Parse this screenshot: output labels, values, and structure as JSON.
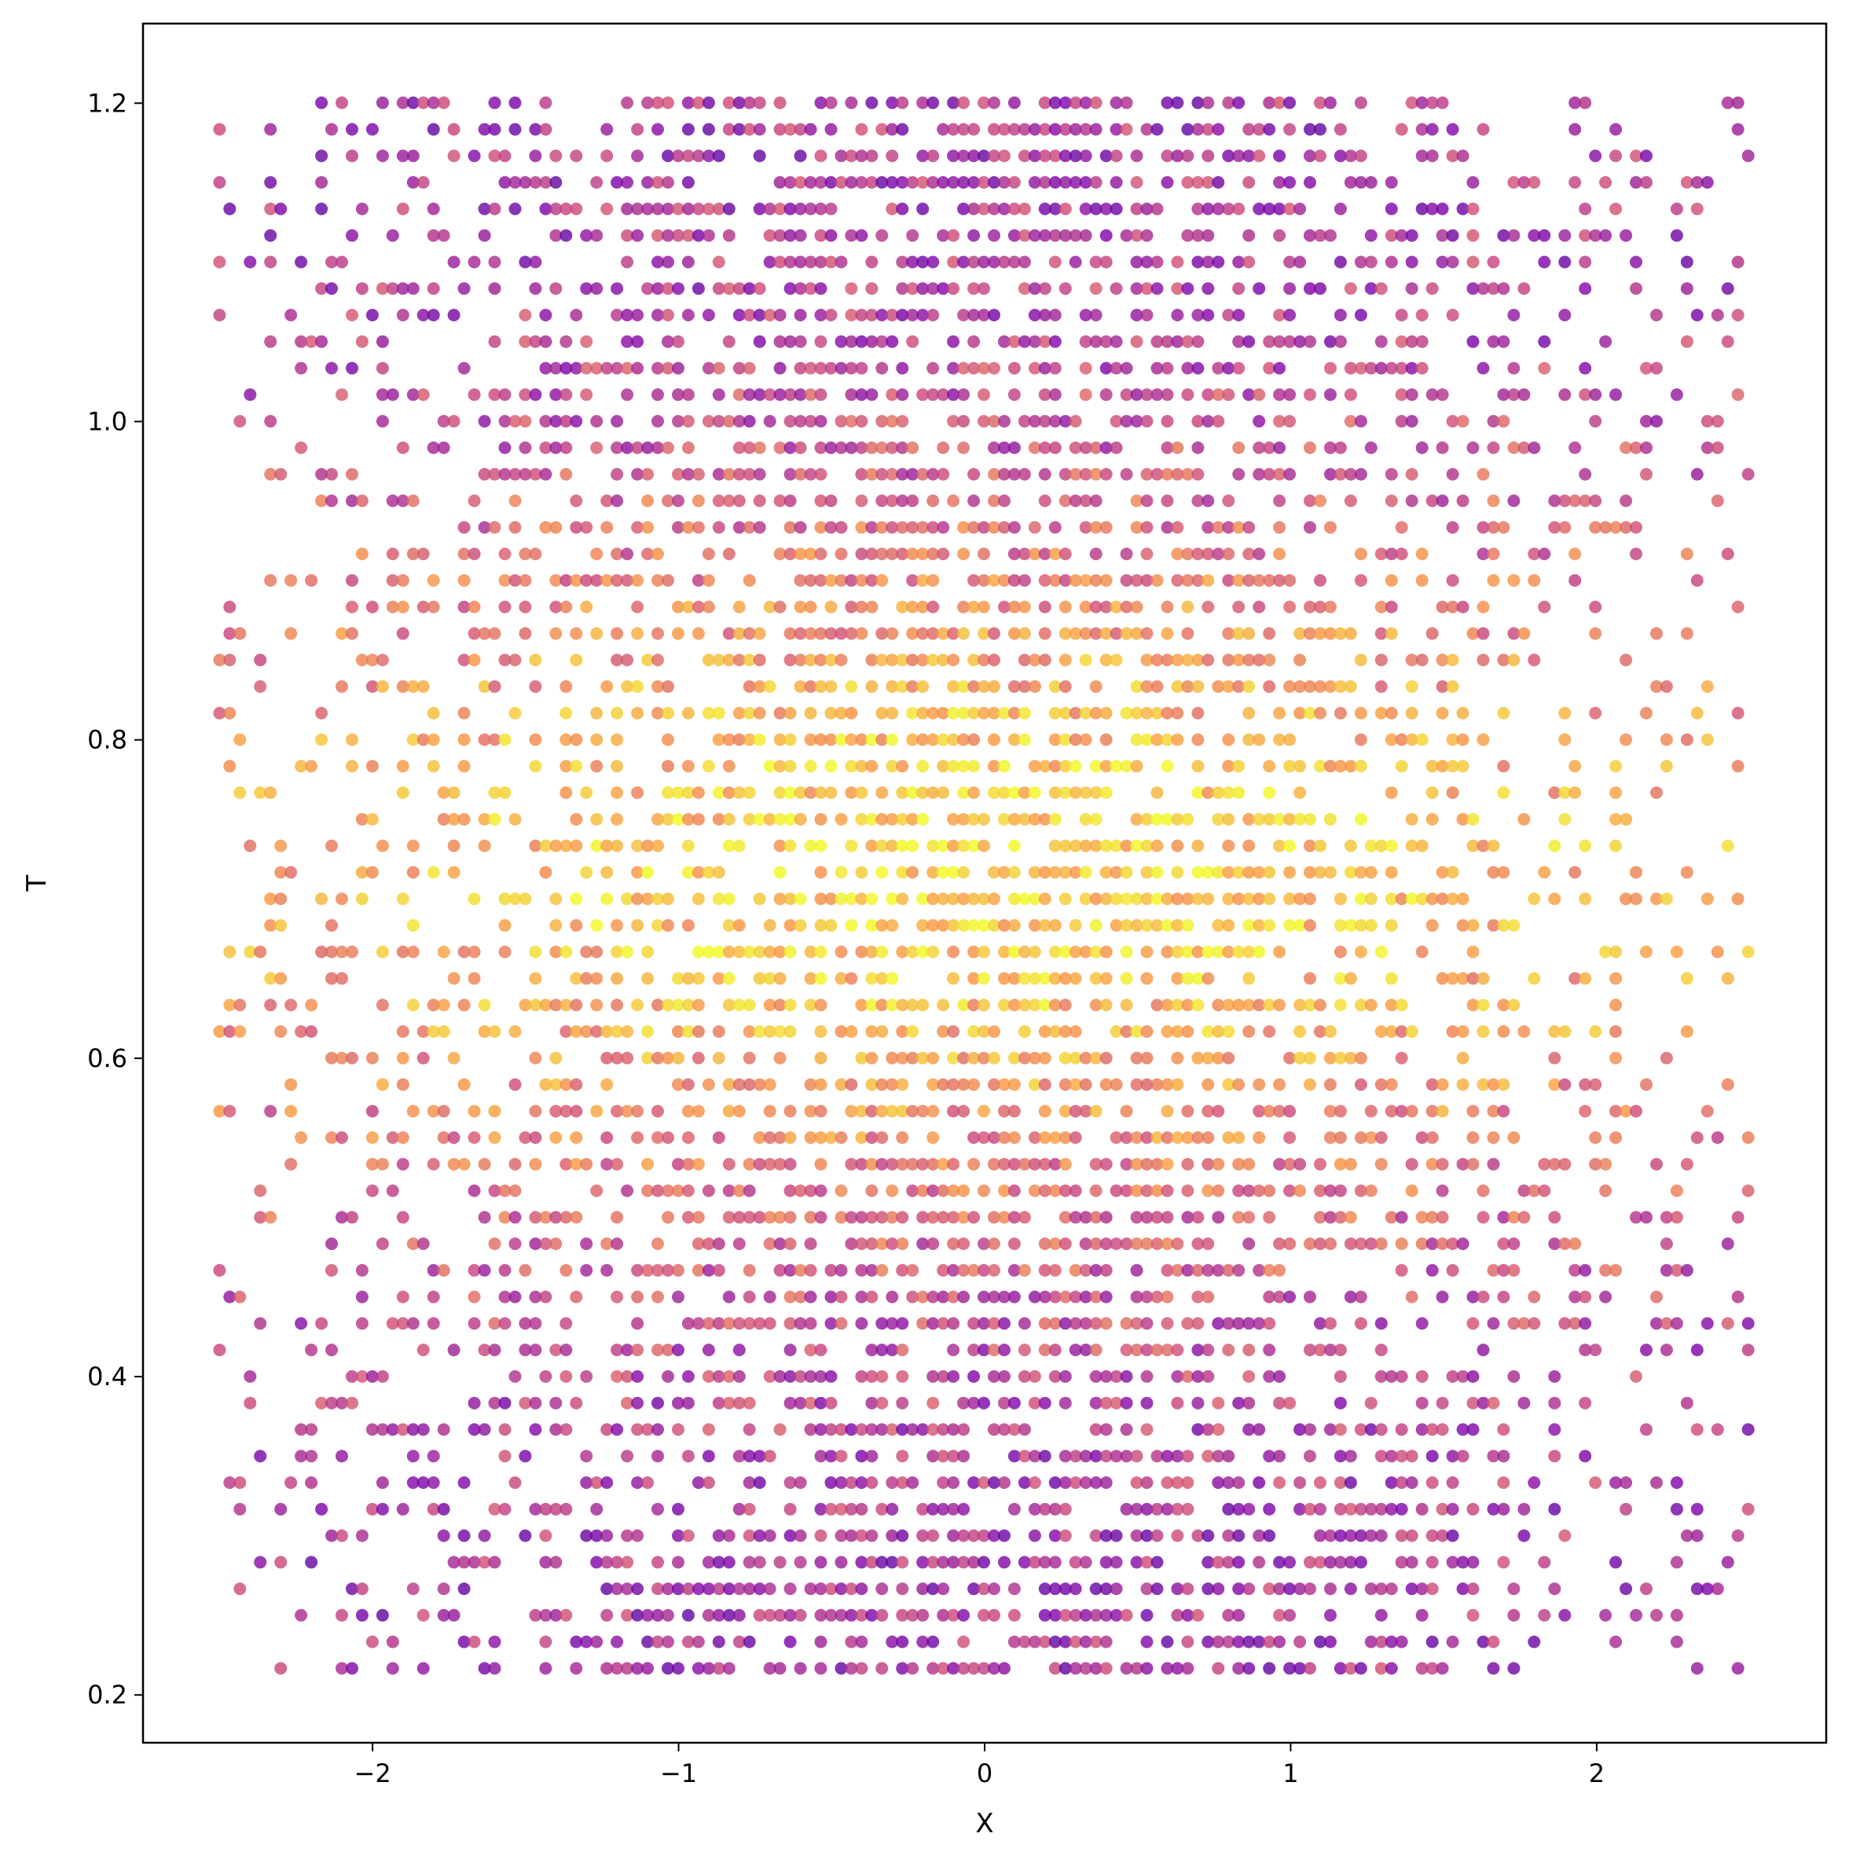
{
  "chart_data": {
    "type": "scatter",
    "title": "",
    "xlabel": "X",
    "ylabel": "T",
    "xlim": [
      -2.75,
      2.75
    ],
    "ylim": [
      0.17,
      1.25
    ],
    "xticks": [
      -2,
      -1,
      0,
      1,
      2
    ],
    "xtick_labels": [
      "−2",
      "−1",
      "0",
      "1",
      "2"
    ],
    "yticks": [
      0.2,
      0.4,
      0.6,
      0.8,
      1.0,
      1.2
    ],
    "ytick_labels": [
      "0.2",
      "0.4",
      "0.6",
      "0.8",
      "1.0",
      "1.2"
    ],
    "grid": false,
    "legend": "none",
    "colormap": "plasma",
    "point_alpha": 0.8,
    "grid_points": {
      "x_min": -2.5,
      "x_max": 2.5,
      "x_step": 0.0333,
      "t_min": 0.2167,
      "t_max": 1.2,
      "t_step": 0.01667
    },
    "structure": "dense scatter of points on a regular X–T grid; yellow (high) values concentrated in the band T≈0.45–0.95 near X≈0, purple (low) values near T≈0.2–0.4 and T≈1.0–1.2",
    "colors": {
      "low": "#0d0887",
      "mid_low": "#9c179e",
      "mid": "#ed7953",
      "high": "#f0f921"
    }
  }
}
